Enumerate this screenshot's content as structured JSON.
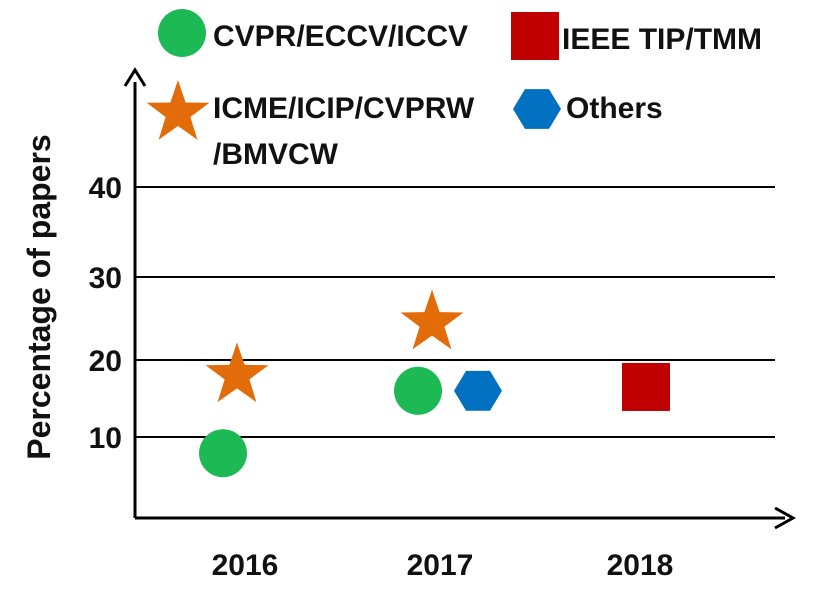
{
  "chart_data": {
    "type": "scatter",
    "ylabel": "Percentage of  papers",
    "categories": [
      "2016",
      "2017",
      "2018"
    ],
    "yticks": [
      10,
      20,
      30,
      40
    ],
    "grid": true,
    "legend_position": "top",
    "series": [
      {
        "name": "CVPR/ECCV/ICCV",
        "marker": "circle",
        "color": "#1db954",
        "points": [
          {
            "x": "2016",
            "y": 8
          },
          {
            "x": "2017",
            "y": 16
          }
        ]
      },
      {
        "name": "IEEE TIP/TMM",
        "marker": "square",
        "color": "#c00000",
        "points": [
          {
            "x": "2018",
            "y": 16.5
          }
        ]
      },
      {
        "name": "ICME/ICIP/CVPRW\n/BMVCW",
        "marker": "star",
        "color": "#e36c0a",
        "points": [
          {
            "x": "2016",
            "y": 18
          },
          {
            "x": "2017",
            "y": 24.5
          }
        ]
      },
      {
        "name": "Others",
        "marker": "hexagon",
        "color": "#0070c0",
        "points": [
          {
            "x": "2017",
            "y": 16
          }
        ]
      }
    ]
  }
}
